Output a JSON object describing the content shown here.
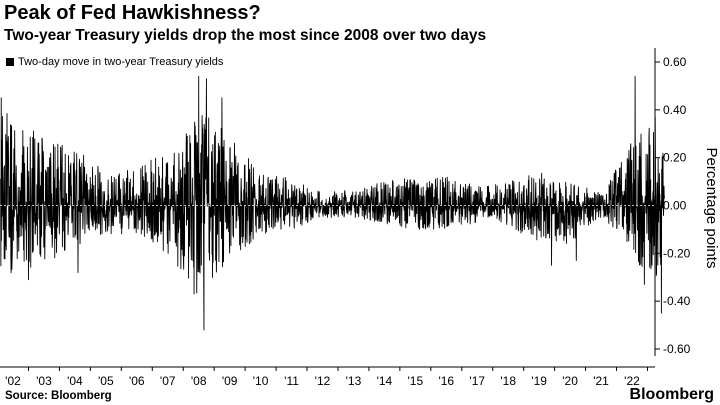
{
  "header": {
    "title": "Peak of Fed Hawkishness?",
    "subtitle": "Two-year Treasury yields drop the most since 2008 over two days"
  },
  "footer": {
    "source": "Source: Bloomberg",
    "brand": "Bloomberg"
  },
  "colors": {
    "series": "#000000",
    "gridline": "#bbbbbb",
    "axis": "#000000"
  },
  "chart_data": {
    "type": "line",
    "title": "Peak of Fed Hawkishness?",
    "subtitle": "Two-year Treasury yields drop the most since 2008 over two days",
    "xlabel": "",
    "ylabel": "Percentage points",
    "xlim": [
      2001.6,
      2023.05
    ],
    "ylim": [
      -0.6,
      0.65
    ],
    "y_ticks": [
      0.6,
      0.4,
      0.2,
      0.0,
      -0.2,
      -0.4,
      -0.6
    ],
    "y_tick_labels": [
      "0.60",
      "0.40",
      "0.20",
      "0.00",
      "-0.20",
      "-0.40",
      "-0.60"
    ],
    "x_ticks": [
      2002,
      2003,
      2004,
      2005,
      2006,
      2007,
      2008,
      2009,
      2010,
      2011,
      2012,
      2013,
      2014,
      2015,
      2016,
      2017,
      2018,
      2019,
      2020,
      2021,
      2022
    ],
    "x_tick_labels": [
      "'02",
      "'03",
      "'04",
      "'05",
      "'06",
      "'07",
      "'08",
      "'09",
      "'10",
      "'11",
      "'12",
      "'13",
      "'14",
      "'15",
      "'16",
      "'17",
      "'18",
      "'19",
      "'20",
      "'21",
      "'22"
    ],
    "grid": false,
    "legend": {
      "position": "top-left",
      "entries": [
        "Two-day move in two-year Treasury yields"
      ]
    },
    "series": [
      {
        "name": "Two-day move in two-year Treasury yields",
        "note": "Dense daily series; values below are approximate amplitude envelope and notable extremes read from the chart",
        "envelope": [
          {
            "year": 2001.6,
            "low": -0.28,
            "high": 0.4
          },
          {
            "year": 2002.0,
            "low": -0.3,
            "high": 0.38
          },
          {
            "year": 2003.0,
            "low": -0.24,
            "high": 0.28
          },
          {
            "year": 2004.0,
            "low": -0.18,
            "high": 0.24
          },
          {
            "year": 2005.0,
            "low": -0.12,
            "high": 0.14
          },
          {
            "year": 2006.0,
            "low": -0.12,
            "high": 0.15
          },
          {
            "year": 2007.0,
            "low": -0.22,
            "high": 0.25
          },
          {
            "year": 2008.0,
            "low": -0.38,
            "high": 0.4
          },
          {
            "year": 2009.0,
            "low": -0.24,
            "high": 0.3
          },
          {
            "year": 2010.0,
            "low": -0.12,
            "high": 0.13
          },
          {
            "year": 2011.0,
            "low": -0.1,
            "high": 0.12
          },
          {
            "year": 2012.0,
            "low": -0.05,
            "high": 0.05
          },
          {
            "year": 2013.0,
            "low": -0.05,
            "high": 0.07
          },
          {
            "year": 2014.0,
            "low": -0.08,
            "high": 0.1
          },
          {
            "year": 2015.0,
            "low": -0.1,
            "high": 0.12
          },
          {
            "year": 2016.0,
            "low": -0.1,
            "high": 0.12
          },
          {
            "year": 2017.0,
            "low": -0.07,
            "high": 0.08
          },
          {
            "year": 2018.0,
            "low": -0.09,
            "high": 0.1
          },
          {
            "year": 2019.0,
            "low": -0.16,
            "high": 0.14
          },
          {
            "year": 2020.0,
            "low": -0.16,
            "high": 0.1
          },
          {
            "year": 2021.0,
            "low": -0.05,
            "high": 0.05
          },
          {
            "year": 2021.8,
            "low": -0.14,
            "high": 0.22
          },
          {
            "year": 2022.0,
            "low": -0.22,
            "high": 0.27
          },
          {
            "year": 2022.6,
            "low": -0.3,
            "high": 0.33
          },
          {
            "year": 2023.0,
            "low": -0.3,
            "high": 0.28
          }
        ],
        "extremes": [
          {
            "year": 2001.62,
            "value": 0.45
          },
          {
            "year": 2002.5,
            "value": -0.31
          },
          {
            "year": 2004.1,
            "value": -0.28
          },
          {
            "year": 2007.6,
            "value": 0.3
          },
          {
            "year": 2007.85,
            "value": -0.37
          },
          {
            "year": 2008.0,
            "value": 0.54
          },
          {
            "year": 2008.17,
            "value": -0.52
          },
          {
            "year": 2008.25,
            "value": 0.53
          },
          {
            "year": 2008.75,
            "value": 0.45
          },
          {
            "year": 2019.4,
            "value": -0.25
          },
          {
            "year": 2020.2,
            "value": -0.23
          },
          {
            "year": 2021.9,
            "value": 0.23
          },
          {
            "year": 2022.1,
            "value": 0.54
          },
          {
            "year": 2022.4,
            "value": -0.33
          },
          {
            "year": 2022.75,
            "value": 0.37
          },
          {
            "year": 2022.95,
            "value": -0.45
          }
        ]
      }
    ]
  }
}
